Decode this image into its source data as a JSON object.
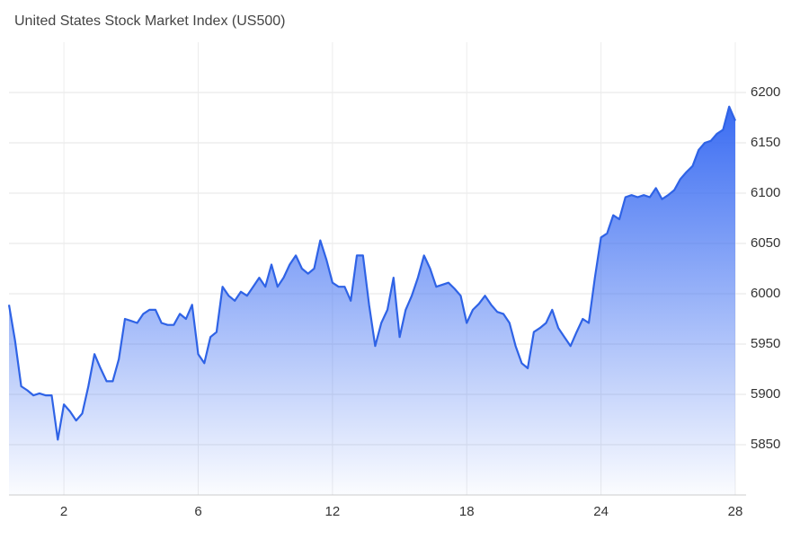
{
  "chart_data": {
    "type": "area",
    "title": "United States Stock Market Index (US500)",
    "x": [
      0,
      1,
      2,
      3,
      4,
      5,
      6,
      7,
      8,
      9,
      10,
      11,
      12,
      13,
      14,
      15,
      16,
      17,
      18,
      19,
      20,
      21,
      22,
      23,
      24,
      25,
      26,
      27,
      28,
      29,
      30,
      31,
      32,
      33,
      34,
      35,
      36,
      37,
      38,
      39,
      40,
      41,
      42,
      43,
      44,
      45,
      46,
      47,
      48,
      49,
      50,
      51,
      52,
      53,
      54,
      55,
      56,
      57,
      58,
      59,
      60,
      61,
      62,
      63,
      64,
      65,
      66,
      67,
      68,
      69,
      70,
      71,
      72,
      73,
      74,
      75,
      76,
      77,
      78,
      79,
      80,
      81,
      82,
      83,
      84,
      85,
      86,
      87,
      88,
      89,
      90,
      91,
      92,
      93,
      94,
      95,
      96,
      97,
      98,
      99,
      100,
      101,
      102,
      103,
      104,
      105,
      106,
      107,
      108,
      109,
      110,
      111,
      112,
      113,
      114,
      115,
      116,
      117,
      118,
      119
    ],
    "values": [
      5989,
      5953,
      5908,
      5904,
      5899,
      5901,
      5899,
      5899,
      5855,
      5890,
      5883,
      5874,
      5881,
      5908,
      5940,
      5926,
      5913,
      5913,
      5935,
      5975,
      5973,
      5971,
      5980,
      5984,
      5984,
      5971,
      5969,
      5969,
      5980,
      5975,
      5989,
      5940,
      5931,
      5957,
      5962,
      6007,
      5998,
      5993,
      6002,
      5998,
      6007,
      6016,
      6007,
      6029,
      6007,
      6016,
      6029,
      6038,
      6025,
      6020,
      6025,
      6053,
      6034,
      6011,
      6007,
      6007,
      5993,
      6038,
      6038,
      5989,
      5948,
      5971,
      5984,
      6016,
      5957,
      5984,
      5998,
      6016,
      6038,
      6025,
      6007,
      6009,
      6011,
      6005,
      5998,
      5971,
      5984,
      5990,
      5998,
      5989,
      5982,
      5980,
      5971,
      5948,
      5931,
      5926,
      5962,
      5966,
      5971,
      5984,
      5966,
      5957,
      5948,
      5962,
      5975,
      5971,
      6016,
      6056,
      6060,
      6078,
      6074,
      6096,
      6098,
      6096,
      6098,
      6096,
      6105,
      6094,
      6098,
      6103,
      6114,
      6121,
      6127,
      6143,
      6150,
      6152,
      6159,
      6163,
      6186,
      6172
    ],
    "color": "#2f63e6",
    "xlim": [
      0,
      119
    ],
    "xticks": [
      {
        "value": 9,
        "label": "2"
      },
      {
        "value": 31,
        "label": "6"
      },
      {
        "value": 53,
        "label": "12"
      },
      {
        "value": 75,
        "label": "18"
      },
      {
        "value": 97,
        "label": "24"
      },
      {
        "value": 119,
        "label": "28"
      }
    ],
    "ylim": [
      5800,
      6250
    ],
    "yticks": [
      5850,
      5900,
      5950,
      6000,
      6050,
      6100,
      6150,
      6200
    ],
    "grid": true
  }
}
